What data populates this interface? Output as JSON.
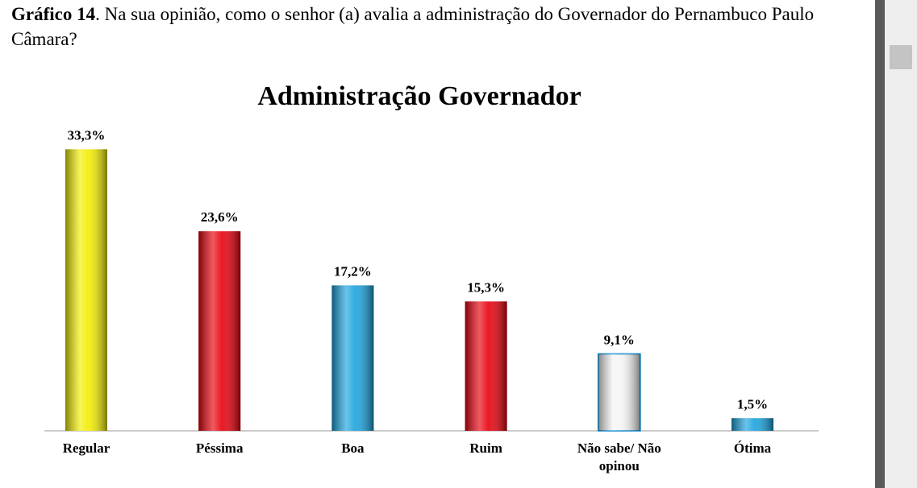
{
  "caption_label": "Gráfico 14",
  "caption_text": ". Na sua opinião, como o senhor (a) avalia a administração do Governador do Pernambuco Paulo Câmara?",
  "chart_data": {
    "type": "bar",
    "title": "Administração Governador",
    "categories": [
      "Regular",
      "Péssima",
      "Boa",
      "Ruim",
      "Não sabe/ Não opinou",
      "Ótima"
    ],
    "values": [
      33.3,
      23.6,
      17.2,
      15.3,
      9.1,
      1.5
    ],
    "value_labels": [
      "33,3%",
      "23,6%",
      "17,2%",
      "15,3%",
      "9,1%",
      "1,5%"
    ],
    "colors": [
      "#f2ee00",
      "#e8000c",
      "#1aa3de",
      "#e8000c",
      "#f4f4f4",
      "#1aa3de"
    ]
  }
}
